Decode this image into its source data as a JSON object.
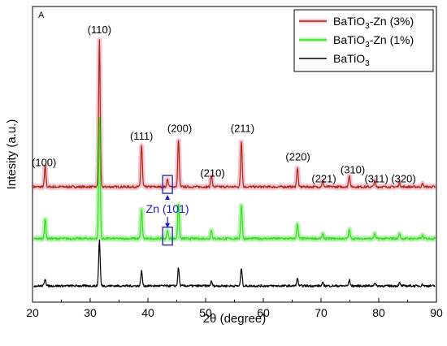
{
  "chart_data": {
    "type": "line",
    "panel_label": "A",
    "xlabel": "2θ (degree)",
    "ylabel": "Intesity (a.u.)",
    "xlim": [
      20,
      90
    ],
    "xticks": [
      20,
      30,
      40,
      50,
      60,
      70,
      80,
      90
    ],
    "grid": false,
    "legend_position": "top-right",
    "series": [
      {
        "name": "BaTiO3-Zn (3%)",
        "legend_main": "BaTiO",
        "legend_sub": "3",
        "legend_rest": "-Zn (3%)",
        "color": "#a52a0a",
        "glow": "#f6bcd2",
        "baseline": 0.78,
        "amp_scale": 1.0,
        "peaks": [
          {
            "x": 22.2,
            "h": 0.14
          },
          {
            "x": 31.6,
            "h": 1.0
          },
          {
            "x": 38.9,
            "h": 0.28
          },
          {
            "x": 43.4,
            "h": 0.05
          },
          {
            "x": 45.3,
            "h": 0.32
          },
          {
            "x": 51.0,
            "h": 0.08
          },
          {
            "x": 56.2,
            "h": 0.31
          },
          {
            "x": 65.9,
            "h": 0.13
          },
          {
            "x": 70.3,
            "h": 0.04
          },
          {
            "x": 74.9,
            "h": 0.08
          },
          {
            "x": 79.3,
            "h": 0.04
          },
          {
            "x": 83.6,
            "h": 0.03
          },
          {
            "x": 87.6,
            "h": 0.02
          }
        ]
      },
      {
        "name": "BaTiO3-Zn (1%)",
        "legend_main": "BaTiO",
        "legend_sub": "3",
        "legend_rest": "-Zn (1%)",
        "color": "#33dd22",
        "glow": "#b6f3ad",
        "baseline": 0.43,
        "amp_scale": 1.0,
        "peaks": [
          {
            "x": 22.2,
            "h": 0.13
          },
          {
            "x": 31.6,
            "h": 0.82
          },
          {
            "x": 38.9,
            "h": 0.2
          },
          {
            "x": 43.4,
            "h": 0.05
          },
          {
            "x": 45.3,
            "h": 0.24
          },
          {
            "x": 51.0,
            "h": 0.06
          },
          {
            "x": 56.2,
            "h": 0.23
          },
          {
            "x": 65.9,
            "h": 0.1
          },
          {
            "x": 70.3,
            "h": 0.03
          },
          {
            "x": 74.9,
            "h": 0.06
          },
          {
            "x": 79.3,
            "h": 0.03
          },
          {
            "x": 83.6,
            "h": 0.03
          },
          {
            "x": 87.6,
            "h": 0.02
          }
        ]
      },
      {
        "name": "BaTiO3",
        "legend_main": "BaTiO",
        "legend_sub": "3",
        "legend_rest": "",
        "color": "#000000",
        "glow": "",
        "baseline": 0.11,
        "amp_scale": 1.0,
        "peaks": [
          {
            "x": 22.2,
            "h": 0.05
          },
          {
            "x": 31.6,
            "h": 0.31
          },
          {
            "x": 38.9,
            "h": 0.1
          },
          {
            "x": 45.3,
            "h": 0.12
          },
          {
            "x": 51.0,
            "h": 0.03
          },
          {
            "x": 56.2,
            "h": 0.12
          },
          {
            "x": 65.9,
            "h": 0.05
          },
          {
            "x": 70.3,
            "h": 0.02
          },
          {
            "x": 74.9,
            "h": 0.04
          },
          {
            "x": 79.3,
            "h": 0.02
          },
          {
            "x": 83.6,
            "h": 0.02
          },
          {
            "x": 87.6,
            "h": 0.01
          }
        ]
      }
    ],
    "peak_labels": [
      {
        "text": "(100)",
        "x": 22.0,
        "y": 0.92
      },
      {
        "text": "(110)",
        "x": 31.6,
        "y": 1.82
      },
      {
        "text": "(111)",
        "x": 38.9,
        "y": 1.1
      },
      {
        "text": "(200)",
        "x": 45.5,
        "y": 1.15
      },
      {
        "text": "(210)",
        "x": 51.2,
        "y": 0.85
      },
      {
        "text": "(211)",
        "x": 56.4,
        "y": 1.15
      },
      {
        "text": "(220)",
        "x": 66.0,
        "y": 0.96
      },
      {
        "text": "(221)",
        "x": 70.5,
        "y": 0.81
      },
      {
        "text": "(310)",
        "x": 75.5,
        "y": 0.87
      },
      {
        "text": "(311)",
        "x": 79.6,
        "y": 0.81
      },
      {
        "text": "(320)",
        "x": 84.3,
        "y": 0.81
      }
    ],
    "annotation": {
      "text": "Zn (101)",
      "color": "#1a1acc",
      "x": 43.4
    }
  }
}
